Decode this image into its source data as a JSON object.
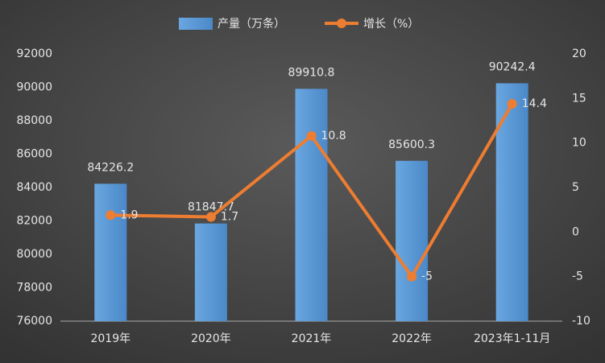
{
  "chart_data": {
    "type": "combo",
    "categories": [
      "2019年",
      "2020年",
      "2021年",
      "2022年",
      "2023年1-11月"
    ],
    "series": [
      {
        "name": "产量（万条）",
        "type": "bar",
        "color": "#5b9bd5",
        "values": [
          84226.2,
          81847.7,
          89910.8,
          85600.3,
          90242.4
        ]
      },
      {
        "name": "增长（%）",
        "type": "line",
        "color": "#ed7d31",
        "axis": "y2",
        "values": [
          1.9,
          1.7,
          10.8,
          -5,
          14.4
        ]
      }
    ],
    "ylim": [
      76000,
      92000
    ],
    "yticks": [
      76000,
      78000,
      80000,
      82000,
      84000,
      86000,
      88000,
      90000,
      92000
    ],
    "y2lim": [
      -10,
      20
    ],
    "y2ticks": [
      -10,
      -5,
      0,
      5,
      10,
      15,
      20
    ],
    "grid": false,
    "legend": "top"
  }
}
